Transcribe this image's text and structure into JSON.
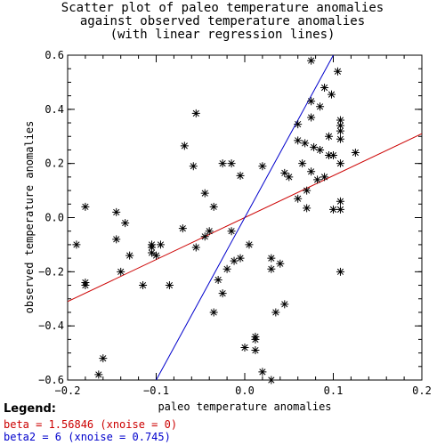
{
  "title_lines": [
    "Scatter plot of paleo temperature anomalies",
    "against observed temperature anomalies",
    "(with linear regression lines)"
  ],
  "legend": {
    "heading": "Legend:",
    "entries": [
      {
        "text": "beta = 1.56846 (xnoise = 0)",
        "color": "#cc0000"
      },
      {
        "text": "beta2 = 6 (xnoise = 0.745)",
        "color": "#0000cc"
      }
    ]
  },
  "chart_data": {
    "type": "scatter",
    "xlabel": "paleo temperature anomalies",
    "ylabel": "observed temperature anomalies",
    "xlim": [
      -0.2,
      0.2
    ],
    "ylim": [
      -0.6,
      0.6
    ],
    "xticks": [
      -0.2,
      -0.1,
      0.0,
      0.1,
      0.2
    ],
    "xtick_labels": [
      "−0.2",
      "−0.1",
      "0.0",
      "0.1",
      "0.2"
    ],
    "yticks": [
      -0.6,
      -0.4,
      -0.2,
      0.0,
      0.2,
      0.4,
      0.6
    ],
    "ytick_labels": [
      "−0.6",
      "−0.4",
      "−0.2",
      "0.0",
      "0.2",
      "0.4",
      "0.6"
    ],
    "marker": "asterisk",
    "lines": [
      {
        "color": "#cc0000",
        "points": [
          [
            -0.2,
            -0.31
          ],
          [
            0.2,
            0.31
          ]
        ]
      },
      {
        "color": "#0000cc",
        "points": [
          [
            -0.1,
            -0.6
          ],
          [
            0.1,
            0.6
          ]
        ]
      }
    ],
    "points": [
      [
        -0.19,
        -0.1
      ],
      [
        -0.18,
        0.04
      ],
      [
        -0.18,
        -0.24
      ],
      [
        -0.18,
        -0.25
      ],
      [
        -0.165,
        -0.58
      ],
      [
        -0.16,
        -0.52
      ],
      [
        -0.145,
        -0.08
      ],
      [
        -0.145,
        0.02
      ],
      [
        -0.14,
        -0.2
      ],
      [
        -0.135,
        -0.02
      ],
      [
        -0.13,
        -0.14
      ],
      [
        -0.115,
        -0.25
      ],
      [
        -0.105,
        -0.11
      ],
      [
        -0.105,
        -0.13
      ],
      [
        -0.105,
        -0.1
      ],
      [
        -0.1,
        -0.14
      ],
      [
        -0.095,
        -0.1
      ],
      [
        -0.085,
        -0.25
      ],
      [
        -0.07,
        -0.04
      ],
      [
        -0.068,
        0.265
      ],
      [
        -0.058,
        0.19
      ],
      [
        -0.055,
        -0.11
      ],
      [
        -0.055,
        0.385
      ],
      [
        -0.045,
        0.09
      ],
      [
        -0.045,
        -0.07
      ],
      [
        -0.04,
        -0.05
      ],
      [
        -0.035,
        0.04
      ],
      [
        -0.035,
        -0.35
      ],
      [
        -0.03,
        -0.23
      ],
      [
        -0.025,
        -0.28
      ],
      [
        -0.025,
        0.2
      ],
      [
        -0.02,
        -0.19
      ],
      [
        -0.015,
        0.2
      ],
      [
        -0.015,
        -0.05
      ],
      [
        -0.012,
        -0.16
      ],
      [
        -0.005,
        0.155
      ],
      [
        -0.005,
        -0.15
      ],
      [
        0.0,
        -0.48
      ],
      [
        0.005,
        -0.1
      ],
      [
        0.012,
        -0.44
      ],
      [
        0.012,
        -0.45
      ],
      [
        0.012,
        -0.49
      ],
      [
        0.02,
        0.19
      ],
      [
        0.02,
        -0.57
      ],
      [
        0.03,
        -0.6
      ],
      [
        0.03,
        -0.15
      ],
      [
        0.03,
        -0.19
      ],
      [
        0.035,
        -0.35
      ],
      [
        0.04,
        -0.17
      ],
      [
        0.045,
        -0.32
      ],
      [
        0.045,
        0.165
      ],
      [
        0.05,
        0.15
      ],
      [
        0.06,
        0.07
      ],
      [
        0.06,
        0.285
      ],
      [
        0.06,
        0.345
      ],
      [
        0.065,
        0.2
      ],
      [
        0.068,
        0.275
      ],
      [
        0.07,
        0.035
      ],
      [
        0.07,
        0.1
      ],
      [
        0.075,
        0.17
      ],
      [
        0.075,
        0.37
      ],
      [
        0.075,
        0.43
      ],
      [
        0.075,
        0.58
      ],
      [
        0.078,
        0.26
      ],
      [
        0.082,
        0.14
      ],
      [
        0.085,
        0.25
      ],
      [
        0.085,
        0.41
      ],
      [
        0.09,
        0.48
      ],
      [
        0.09,
        0.15
      ],
      [
        0.095,
        0.3
      ],
      [
        0.095,
        0.23
      ],
      [
        0.098,
        0.455
      ],
      [
        0.1,
        0.23
      ],
      [
        0.1,
        0.03
      ],
      [
        0.105,
        0.54
      ],
      [
        0.108,
        0.36
      ],
      [
        0.108,
        0.34
      ],
      [
        0.108,
        0.32
      ],
      [
        0.108,
        0.29
      ],
      [
        0.108,
        0.2
      ],
      [
        0.108,
        0.06
      ],
      [
        0.108,
        0.03
      ],
      [
        0.108,
        -0.2
      ],
      [
        0.125,
        0.24
      ]
    ]
  }
}
